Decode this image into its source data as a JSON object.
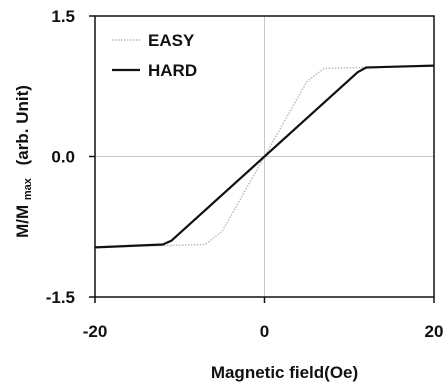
{
  "chart_data": {
    "type": "line",
    "xlabel": "Magnetic field(Oe)",
    "ylabel": {
      "prefix": "M/M",
      "subscript": "max",
      "suffix": "(arb. Unit)"
    },
    "xlim": [
      -20,
      20
    ],
    "ylim": [
      -1.5,
      1.5
    ],
    "x_ticks": [
      -20,
      0,
      20
    ],
    "y_ticks": [
      -1.5,
      0.0,
      1.5
    ],
    "x_tick_labels": [
      "-20",
      "0",
      "20"
    ],
    "y_tick_labels": [
      "-1.5",
      "0.0",
      "1.5"
    ],
    "grid": false,
    "zero_lines": true,
    "legend_position": "top-left",
    "series": [
      {
        "name": "EASY",
        "color": "#b8b8b8",
        "style": "dotted",
        "x": [
          -20,
          -7,
          -5,
          5,
          7,
          20
        ],
        "y": [
          -0.97,
          -0.94,
          -0.8,
          0.8,
          0.94,
          0.97
        ]
      },
      {
        "name": "HARD",
        "color": "#111111",
        "style": "solid",
        "x": [
          -20,
          -12,
          -11,
          11,
          12,
          20
        ],
        "y": [
          -0.97,
          -0.94,
          -0.9,
          0.9,
          0.95,
          0.97
        ]
      }
    ]
  }
}
